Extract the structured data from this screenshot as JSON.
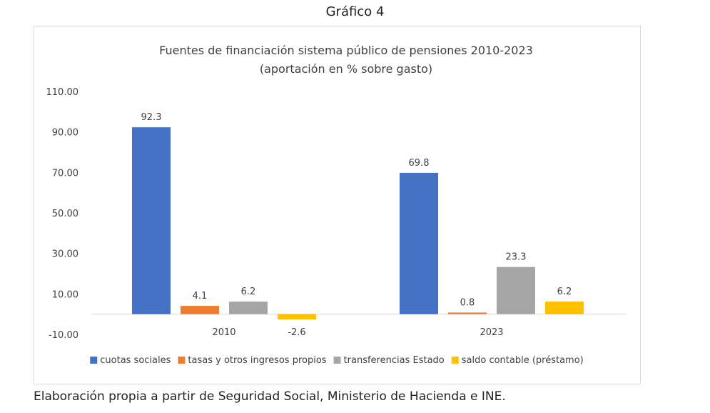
{
  "figure_title": "Gráfico 4",
  "source_note": "Elaboración propia a partir de Seguridad Social, Ministerio de Hacienda e INE.",
  "chart_data": {
    "type": "bar",
    "title": "Fuentes de financiación sistema público de pensiones 2010-2023",
    "subtitle": "(aportación en % sobre gasto)",
    "categories": [
      "2010",
      "2023"
    ],
    "series": [
      {
        "name": "cuotas sociales",
        "color": "#4472C4",
        "values": [
          92.3,
          69.8
        ]
      },
      {
        "name": "tasas y otros ingresos propios",
        "color": "#ED7D31",
        "values": [
          4.1,
          0.8
        ]
      },
      {
        "name": "transferencias Estado",
        "color": "#A5A5A5",
        "values": [
          6.2,
          23.3
        ]
      },
      {
        "name": "saldo contable (préstamo)",
        "color": "#FFC000",
        "values": [
          -2.6,
          6.2
        ]
      }
    ],
    "y_ticks": [
      "110.00",
      "90.00",
      "70.00",
      "50.00",
      "30.00",
      "10.00",
      "-10.00"
    ],
    "ylim": [
      -10,
      110
    ],
    "grid": false,
    "legend_position": "bottom"
  }
}
